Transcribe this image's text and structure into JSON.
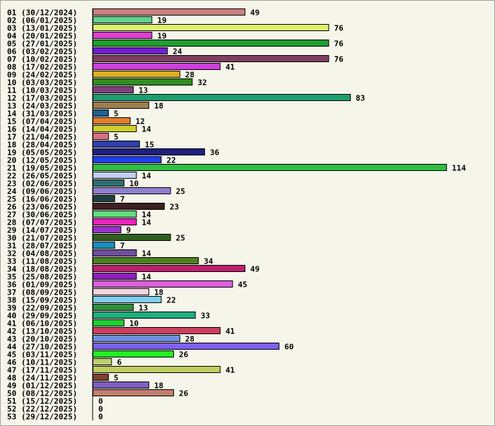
{
  "chart_data": {
    "type": "bar",
    "orientation": "horizontal",
    "title": "",
    "xlabel": "",
    "ylabel": "",
    "grid": false,
    "legend": "none",
    "xlim": [
      0,
      114
    ],
    "categories": [
      "01 (30/12/2024)",
      "02 (06/01/2025)",
      "03 (13/01/2025)",
      "04 (20/01/2025)",
      "05 (27/01/2025)",
      "06 (03/02/2025)",
      "07 (10/02/2025)",
      "08 (17/02/2025)",
      "09 (24/02/2025)",
      "10 (03/03/2025)",
      "11 (10/03/2025)",
      "12 (17/03/2025)",
      "13 (24/03/2025)",
      "14 (31/03/2025)",
      "15 (07/04/2025)",
      "16 (14/04/2025)",
      "17 (21/04/2025)",
      "18 (28/04/2025)",
      "19 (05/05/2025)",
      "20 (12/05/2025)",
      "21 (19/05/2025)",
      "22 (26/05/2025)",
      "23 (02/06/2025)",
      "24 (09/06/2025)",
      "25 (16/06/2025)",
      "26 (23/06/2025)",
      "27 (30/06/2025)",
      "28 (07/07/2025)",
      "29 (14/07/2025)",
      "30 (21/07/2025)",
      "31 (28/07/2025)",
      "32 (04/08/2025)",
      "33 (11/08/2025)",
      "34 (18/08/2025)",
      "35 (25/08/2025)",
      "36 (01/09/2025)",
      "37 (08/09/2025)",
      "38 (15/09/2025)",
      "39 (22/09/2025)",
      "40 (29/09/2025)",
      "41 (06/10/2025)",
      "42 (13/10/2025)",
      "43 (20/10/2025)",
      "44 (27/10/2025)",
      "45 (03/11/2025)",
      "46 (10/11/2025)",
      "47 (17/11/2025)",
      "48 (24/11/2025)",
      "49 (01/12/2025)",
      "50 (08/12/2025)",
      "51 (15/12/2025)",
      "52 (22/12/2025)",
      "53 (29/12/2025)"
    ],
    "values": [
      49,
      19,
      76,
      19,
      76,
      24,
      76,
      41,
      28,
      32,
      13,
      83,
      18,
      5,
      12,
      14,
      5,
      15,
      36,
      22,
      114,
      14,
      10,
      25,
      7,
      23,
      14,
      14,
      9,
      25,
      7,
      14,
      34,
      49,
      14,
      45,
      18,
      22,
      13,
      33,
      10,
      41,
      28,
      60,
      26,
      6,
      41,
      5,
      18,
      26,
      0,
      0,
      0
    ],
    "colors": [
      "#cd7f7f",
      "#5fd38d",
      "#dfef6f",
      "#df3fcf",
      "#1f9f2f",
      "#6f1fcf",
      "#7f3f5f",
      "#cf3fdf",
      "#dfaf1f",
      "#2f8f1f",
      "#7f3f7f",
      "#1f9f6f",
      "#9f7f4f",
      "#1f5f8f",
      "#df7f2f",
      "#cfcf2f",
      "#df6f7f",
      "#2f3faf",
      "#1f1f7f",
      "#1f3fef",
      "#2fbf3f",
      "#bfcfef",
      "#2f6f6f",
      "#8f7fcf",
      "#1f3f3f",
      "#3f1f1f",
      "#5fdf7f",
      "#ef1fbf",
      "#9f2fcf",
      "#2f5f1f",
      "#1f8fbf",
      "#6f4f9f",
      "#4f7f1f",
      "#bf1f6f",
      "#8f1fbf",
      "#df5fdf",
      "#f5d5df",
      "#7fcfef",
      "#2f8f3f",
      "#1faf7f",
      "#1fcf2f",
      "#cf3f5f",
      "#6f8fdf",
      "#7f5fef",
      "#1fef1f",
      "#bfcf6f",
      "#bfcf5f",
      "#7f3f2f",
      "#7f5fbf",
      "#bf7f6f",
      "#cfcfcf",
      "#cfcfcf",
      "#cfcfcf"
    ]
  }
}
